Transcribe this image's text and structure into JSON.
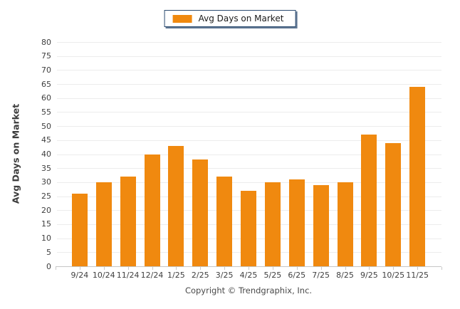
{
  "legend": {
    "label": "Avg Days on Market",
    "swatch_icon": "orange-square-swatch"
  },
  "colors": {
    "bar": "#F0890F",
    "legend_border": "#2b4a6f",
    "gridline": "#ececec",
    "axis_line": "#c6c6c6",
    "label_text": "#3f3f3f"
  },
  "chart_data": {
    "type": "bar",
    "title": "",
    "categories": [
      "9/24",
      "10/24",
      "11/24",
      "12/24",
      "1/25",
      "2/25",
      "3/25",
      "4/25",
      "5/25",
      "6/25",
      "7/25",
      "8/25",
      "9/25",
      "10/25",
      "11/25"
    ],
    "values": [
      26,
      30,
      32,
      40,
      43,
      38,
      32,
      27,
      30,
      31,
      29,
      30,
      47,
      44,
      64
    ],
    "series": [
      {
        "name": "Avg Days on Market",
        "values": [
          26,
          30,
          32,
          40,
          43,
          38,
          32,
          27,
          30,
          31,
          29,
          30,
          47,
          44,
          64
        ]
      }
    ],
    "xlabel": "",
    "ylabel": "Avg Days on Market",
    "ylim": [
      0,
      80
    ],
    "ytick_step": 5,
    "grid": true,
    "legend_position": "top-center",
    "bar_color": "#F0890F"
  },
  "footer": {
    "copyright": "Copyright © Trendgraphix, Inc."
  }
}
